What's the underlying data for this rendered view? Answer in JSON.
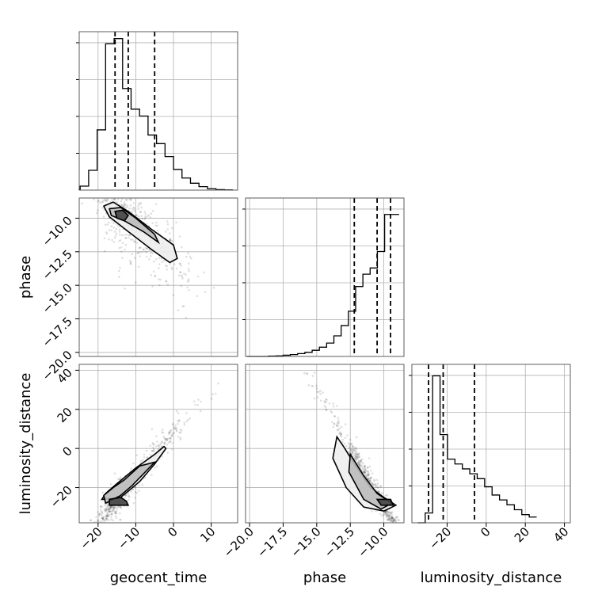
{
  "chart_data": {
    "type": "corner",
    "parameters": [
      "geocent_time",
      "phase",
      "luminosity_distance"
    ],
    "grid": true,
    "ranges": {
      "geocent_time": [
        -25,
        17
      ],
      "phase": [
        -20.3,
        -8.5
      ],
      "luminosity_distance": [
        -38,
        43
      ]
    },
    "ticks": {
      "geocent_time": [
        {
          "v": -20,
          "label": "−20"
        },
        {
          "v": -10,
          "label": "−10"
        },
        {
          "v": 0,
          "label": "0"
        },
        {
          "v": 10,
          "label": "10"
        }
      ],
      "phase": [
        {
          "v": -20,
          "label": "−20.0"
        },
        {
          "v": -17.5,
          "label": "−17.5"
        },
        {
          "v": -15,
          "label": "−15.0"
        },
        {
          "v": -12.5,
          "label": "−12.5"
        },
        {
          "v": -10,
          "label": "−10.0"
        }
      ],
      "luminosity_distance": [
        {
          "v": -20,
          "label": "−20"
        },
        {
          "v": 0,
          "label": "0"
        },
        {
          "v": 20,
          "label": "20"
        },
        {
          "v": 40,
          "label": "40"
        }
      ]
    },
    "y_ticks": {
      "phase": [
        {
          "v": -10,
          "label": "−10.0"
        },
        {
          "v": -12.5,
          "label": "−12.5"
        },
        {
          "v": -15,
          "label": "−15.0"
        },
        {
          "v": -17.5,
          "label": "−17.5"
        },
        {
          "v": -20,
          "label": "−20.0"
        }
      ],
      "luminosity_distance": [
        {
          "v": 40,
          "label": "40"
        },
        {
          "v": 20,
          "label": "20"
        },
        {
          "v": 0,
          "label": "0"
        },
        {
          "v": -20,
          "label": "−20"
        }
      ]
    },
    "histograms": {
      "geocent_time": {
        "bin_edges": [
          -27,
          -24.75,
          -22.5,
          -20.25,
          -18,
          -15.75,
          -13.5,
          -11.25,
          -9,
          -6.75,
          -4.5,
          -2.25,
          0,
          2.25,
          4.5,
          6.75,
          9,
          11.25,
          13.5,
          15.75
        ],
        "counts": [
          0.3,
          2.3,
          11.5,
          35,
          85,
          88,
          59,
          47,
          43,
          32,
          27,
          19.5,
          12,
          7,
          4,
          2,
          0.8,
          0.3,
          0.1
        ],
        "quantiles": [
          -15.5,
          -12.0,
          -5.0
        ],
        "ymax": 92
      },
      "phase": {
        "bin_edges": [
          -20.2,
          -19.66,
          -19.12,
          -18.58,
          -18.04,
          -17.5,
          -16.96,
          -16.42,
          -15.88,
          -15.34,
          -14.8,
          -14.26,
          -13.72,
          -13.18,
          -12.64,
          -12.1,
          -11.56,
          -11.02,
          -10.48,
          -9.94,
          -9.4,
          -8.86
        ],
        "counts": [
          0,
          0,
          0,
          0.2,
          0.3,
          0.6,
          0.9,
          1.4,
          2,
          3,
          4.5,
          6.5,
          10,
          15,
          22,
          34,
          40,
          43,
          51,
          69,
          69
        ],
        "quantiles": [
          -12.2,
          -10.5,
          -9.5
        ],
        "ymax": 77
      },
      "luminosity_distance": {
        "bin_edges": [
          -35,
          -31.2,
          -27.4,
          -23.6,
          -19.8,
          -16,
          -12.2,
          -8.4,
          -4.6,
          -0.8,
          3,
          6.8,
          10.6,
          14.4,
          18.2,
          22,
          25.8
        ],
        "counts": [
          0,
          6,
          90,
          54,
          39,
          36,
          33,
          30,
          27,
          22,
          17,
          14,
          11,
          8,
          5,
          3.5
        ],
        "quantiles": [
          -29.5,
          -22,
          -6
        ],
        "ymax": 97
      }
    },
    "scatter_2d": [
      {
        "x": "geocent_time",
        "y": "phase",
        "trend": {
          "x_center": -12,
          "slope": -0.26,
          "intercept": -13.1,
          "spread": 1.2
        }
      },
      {
        "x": "geocent_time",
        "y": "luminosity_distance",
        "trend": {
          "x_center": -12,
          "slope": 2.3,
          "intercept": 8,
          "spread": 3.5
        }
      },
      {
        "x": "phase",
        "y": "luminosity_distance",
        "trend": {
          "x_center": -10.5,
          "slope": -12,
          "intercept": -150,
          "spread": 3
        }
      }
    ],
    "contours_2d": [
      {
        "x": "geocent_time",
        "y": "phase",
        "levels": [
          [
            [
              -18.5,
              -9.1
            ],
            [
              -16,
              -8.8
            ],
            [
              -12,
              -9.5
            ],
            [
              -6,
              -10.8
            ],
            [
              0,
              -12
            ],
            [
              1,
              -13
            ],
            [
              -1,
              -13.3
            ],
            [
              -6,
              -12.3
            ],
            [
              -12,
              -11
            ],
            [
              -17,
              -9.9
            ]
          ],
          [
            [
              -17,
              -9.3
            ],
            [
              -14,
              -9.2
            ],
            [
              -10,
              -10
            ],
            [
              -5,
              -11.2
            ],
            [
              -4,
              -11.8
            ],
            [
              -8,
              -11
            ],
            [
              -13,
              -10.2
            ],
            [
              -16.5,
              -9.8
            ]
          ],
          [
            [
              -15.5,
              -9.5
            ],
            [
              -13.5,
              -9.4
            ],
            [
              -12,
              -9.8
            ],
            [
              -13,
              -10.2
            ],
            [
              -15,
              -10
            ]
          ]
        ]
      },
      {
        "x": "geocent_time",
        "y": "luminosity_distance",
        "levels": [
          [
            [
              -19,
              -26
            ],
            [
              -14,
              -25
            ],
            [
              -9,
              -17
            ],
            [
              -5,
              -8
            ],
            [
              -2,
              0
            ],
            [
              -2.5,
              1
            ],
            [
              -5,
              -3
            ],
            [
              -10,
              -10
            ],
            [
              -15,
              -18
            ],
            [
              -18,
              -23
            ]
          ],
          [
            [
              -18,
              -28
            ],
            [
              -14,
              -24
            ],
            [
              -11,
              -19
            ],
            [
              -8,
              -13
            ],
            [
              -5,
              -7
            ],
            [
              -9,
              -9
            ],
            [
              -13,
              -16
            ],
            [
              -16,
              -20
            ],
            [
              -18.5,
              -24
            ]
          ],
          [
            [
              -17,
              -29
            ],
            [
              -12,
              -29
            ],
            [
              -12.5,
              -27
            ],
            [
              -14,
              -25
            ],
            [
              -17,
              -26
            ]
          ]
        ]
      },
      {
        "x": "phase",
        "y": "luminosity_distance",
        "levels": [
          [
            [
              -13.5,
              6
            ],
            [
              -13,
              1
            ],
            [
              -12,
              -10
            ],
            [
              -11,
              -20
            ],
            [
              -10,
              -25
            ],
            [
              -9.1,
              -29
            ],
            [
              -10,
              -32
            ],
            [
              -11.5,
              -30
            ],
            [
              -12.8,
              -20
            ],
            [
              -13.8,
              -5
            ]
          ],
          [
            [
              -12.5,
              -3
            ],
            [
              -11.5,
              -14
            ],
            [
              -10.5,
              -23
            ],
            [
              -9.4,
              -28
            ],
            [
              -10.2,
              -31
            ],
            [
              -11.5,
              -26
            ],
            [
              -12.6,
              -12
            ]
          ],
          [
            [
              -10.5,
              -26
            ],
            [
              -9.5,
              -26
            ],
            [
              -9.3,
              -29
            ],
            [
              -10.2,
              -29
            ]
          ]
        ]
      }
    ]
  }
}
